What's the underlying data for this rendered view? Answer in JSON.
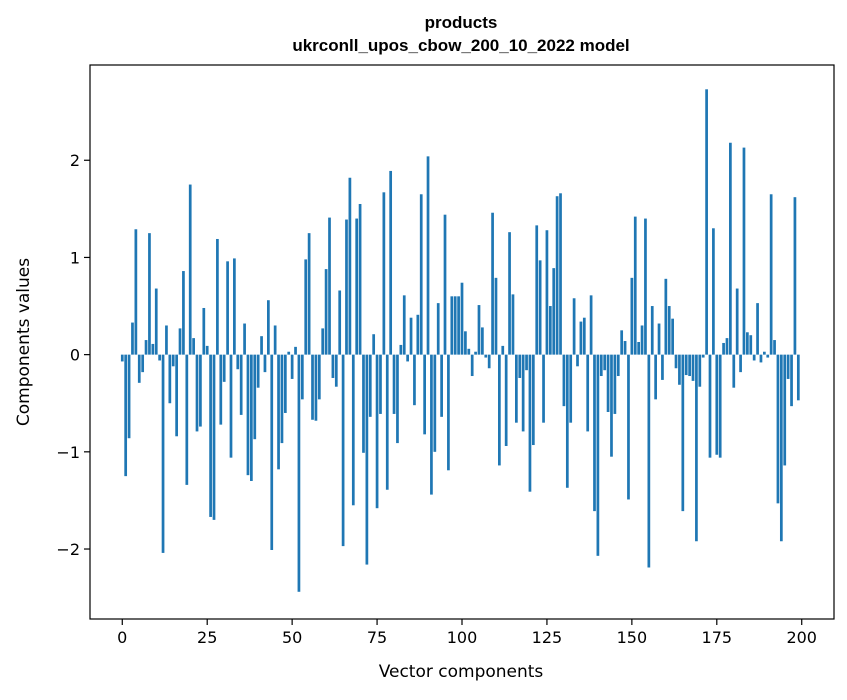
{
  "chart_data": {
    "type": "bar",
    "title": "products",
    "subtitle": "ukrconll_upos_cbow_200_10_2022 model",
    "xlabel": "Vector components",
    "ylabel": "Components values",
    "xlim": [
      -9.5,
      209.5
    ],
    "ylim": [
      -2.72,
      2.98
    ],
    "xticks": [
      0,
      25,
      50,
      75,
      100,
      125,
      150,
      175,
      200
    ],
    "xtick_labels": [
      "0",
      "25",
      "50",
      "75",
      "100",
      "125",
      "150",
      "175",
      "200"
    ],
    "yticks": [
      -2,
      -1,
      0,
      1,
      2
    ],
    "ytick_labels": [
      "−2",
      "−1",
      "0",
      "1",
      "2"
    ],
    "grid": false,
    "color": "#1f77b4",
    "x": [
      0,
      1,
      2,
      3,
      4,
      5,
      6,
      7,
      8,
      9,
      10,
      11,
      12,
      13,
      14,
      15,
      16,
      17,
      18,
      19,
      20,
      21,
      22,
      23,
      24,
      25,
      26,
      27,
      28,
      29,
      30,
      31,
      32,
      33,
      34,
      35,
      36,
      37,
      38,
      39,
      40,
      41,
      42,
      43,
      44,
      45,
      46,
      47,
      48,
      49,
      50,
      51,
      52,
      53,
      54,
      55,
      56,
      57,
      58,
      59,
      60,
      61,
      62,
      63,
      64,
      65,
      66,
      67,
      68,
      69,
      70,
      71,
      72,
      73,
      74,
      75,
      76,
      77,
      78,
      79,
      80,
      81,
      82,
      83,
      84,
      85,
      86,
      87,
      88,
      89,
      90,
      91,
      92,
      93,
      94,
      95,
      96,
      97,
      98,
      99,
      100,
      101,
      102,
      103,
      104,
      105,
      106,
      107,
      108,
      109,
      110,
      111,
      112,
      113,
      114,
      115,
      116,
      117,
      118,
      119,
      120,
      121,
      122,
      123,
      124,
      125,
      126,
      127,
      128,
      129,
      130,
      131,
      132,
      133,
      134,
      135,
      136,
      137,
      138,
      139,
      140,
      141,
      142,
      143,
      144,
      145,
      146,
      147,
      148,
      149,
      150,
      151,
      152,
      153,
      154,
      155,
      156,
      157,
      158,
      159,
      160,
      161,
      162,
      163,
      164,
      165,
      166,
      167,
      168,
      169,
      170,
      171,
      172,
      173,
      174,
      175,
      176,
      177,
      178,
      179,
      180,
      181,
      182,
      183,
      184,
      185,
      186,
      187,
      188,
      189,
      190,
      191,
      192,
      193,
      194,
      195,
      196,
      197,
      198,
      199
    ],
    "values": [
      -0.07,
      -1.25,
      -0.86,
      0.33,
      1.29,
      -0.29,
      -0.18,
      0.15,
      1.25,
      0.11,
      0.68,
      -0.06,
      -2.04,
      0.3,
      -0.5,
      -0.12,
      -0.84,
      0.27,
      0.86,
      -1.34,
      1.75,
      0.17,
      -0.79,
      -0.74,
      0.48,
      0.09,
      -1.67,
      -1.7,
      1.19,
      -0.72,
      -0.28,
      0.96,
      -1.06,
      0.99,
      -0.15,
      -0.62,
      0.32,
      -1.24,
      -1.3,
      -0.87,
      -0.34,
      0.19,
      -0.18,
      0.56,
      -2.01,
      0.3,
      -1.18,
      -0.91,
      -0.6,
      0.03,
      -0.25,
      0.08,
      -2.44,
      -0.46,
      0.98,
      1.25,
      -0.67,
      -0.68,
      -0.46,
      0.27,
      0.88,
      1.41,
      -0.24,
      -0.33,
      0.66,
      -1.97,
      1.39,
      1.82,
      -1.55,
      1.4,
      1.55,
      -1.01,
      -2.16,
      -0.64,
      0.21,
      -1.58,
      -0.61,
      1.67,
      -1.39,
      1.89,
      -0.61,
      -0.91,
      0.1,
      0.61,
      -0.07,
      0.38,
      -0.52,
      0.41,
      1.65,
      -0.82,
      2.04,
      -1.44,
      -1.0,
      0.53,
      -0.64,
      1.44,
      -1.19,
      0.6,
      0.6,
      0.6,
      0.74,
      0.24,
      0.06,
      -0.22,
      0.03,
      0.51,
      0.28,
      -0.03,
      -0.14,
      1.46,
      0.79,
      -1.14,
      0.09,
      -0.94,
      1.26,
      0.62,
      -0.7,
      -0.24,
      -0.79,
      -0.16,
      -1.41,
      -0.93,
      1.33,
      0.97,
      -0.7,
      1.28,
      0.5,
      0.89,
      1.63,
      1.66,
      -0.53,
      -1.37,
      -0.7,
      0.58,
      -0.12,
      0.34,
      0.38,
      -0.79,
      0.61,
      -1.61,
      -2.07,
      -0.22,
      -0.16,
      -0.59,
      -1.05,
      -0.61,
      -0.22,
      0.25,
      0.14,
      -1.49,
      0.79,
      1.42,
      0.13,
      0.3,
      1.4,
      -2.19,
      0.5,
      -0.46,
      0.32,
      -0.26,
      0.78,
      0.5,
      0.37,
      -0.14,
      -0.31,
      -1.61,
      -0.21,
      -0.22,
      -0.27,
      -1.92,
      -0.33,
      -0.03,
      2.73,
      -1.06,
      1.3,
      -1.03,
      -1.06,
      0.12,
      0.17,
      2.18,
      -0.34,
      0.68,
      -0.18,
      2.13,
      0.23,
      0.2,
      -0.06,
      0.53,
      -0.08,
      0.03,
      -0.03,
      1.65,
      0.15,
      -1.53,
      -1.92,
      -1.14,
      -0.25,
      -0.53,
      1.62,
      -0.47
    ]
  }
}
